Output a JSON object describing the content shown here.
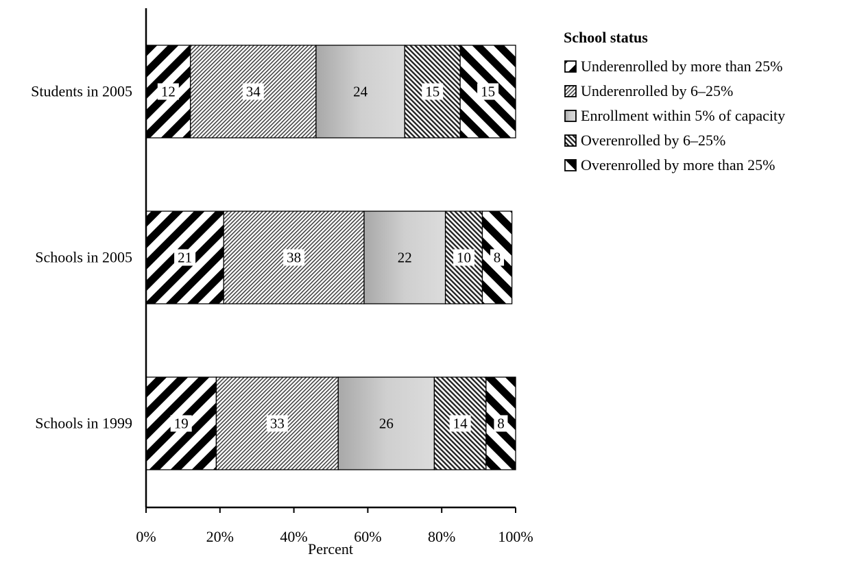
{
  "chart_data": {
    "type": "bar",
    "orientation": "horizontal",
    "stacked": true,
    "categories": [
      "Students in 2005",
      "Schools in 2005",
      "Schools in 1999"
    ],
    "series": [
      {
        "name": "Underenrolled by more than 25%",
        "values": [
          12,
          21,
          19
        ]
      },
      {
        "name": "Underenrolled by 6–25%",
        "values": [
          34,
          38,
          33
        ]
      },
      {
        "name": "Enrollment within 5% of capacity",
        "values": [
          24,
          22,
          26
        ]
      },
      {
        "name": "Overenrolled by 6–25%",
        "values": [
          15,
          10,
          14
        ]
      },
      {
        "name": "Overenrolled by more than 25%",
        "values": [
          15,
          8,
          8
        ]
      }
    ],
    "xlabel": "Percent",
    "ylabel": "",
    "xlim": [
      0,
      100
    ],
    "xticks": [
      "0%",
      "20%",
      "40%",
      "60%",
      "80%",
      "100%"
    ],
    "legend_title": "School status",
    "legend_position": "right",
    "grid": false
  },
  "series_styles": [
    {
      "pattern": "stripe-thick",
      "color": "#000000"
    },
    {
      "pattern": "stripe-fine",
      "color": "#555555"
    },
    {
      "pattern": "gradient",
      "color": "#bdbdbd"
    },
    {
      "pattern": "backstripe-fine",
      "color": "#333333"
    },
    {
      "pattern": "backstripe-thick",
      "color": "#000000"
    }
  ]
}
